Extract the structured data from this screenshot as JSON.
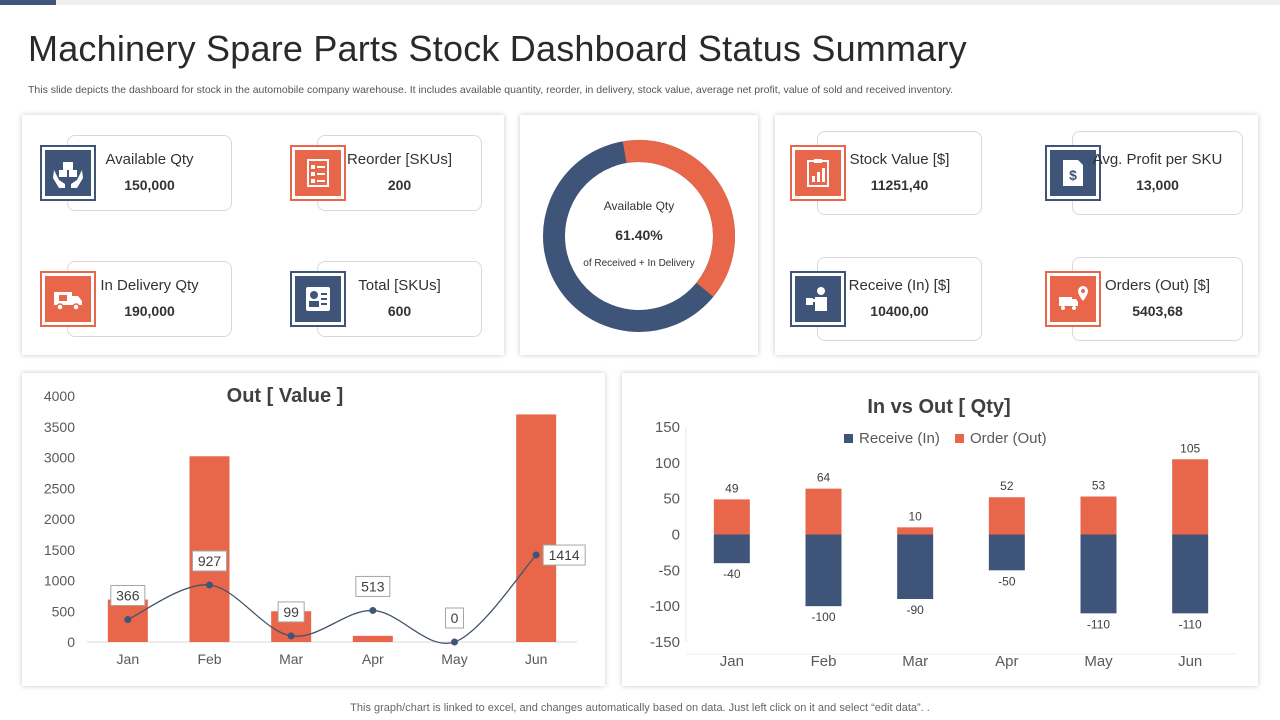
{
  "title": "Machinery Spare Parts Stock Dashboard Status Summary",
  "subtitle": "This slide depicts the dashboard for stock in the automobile company warehouse. It includes available quantity, reorder, in delivery,  stock value, average net profit, value of sold and received inventory.",
  "footer": "This graph/chart is linked to excel,  and changes automatically based on data. Just left click on it and select “edit data”. .",
  "colors": {
    "blue": "#3f5479",
    "orange": "#e8664a"
  },
  "kpis_left": [
    {
      "label": "Available  Qty",
      "value": "150,000",
      "icon": "hands-boxes-icon"
    },
    {
      "label": "Reorder [SKUs]",
      "value": "200",
      "icon": "checklist-icon"
    },
    {
      "label": "In Delivery Qty",
      "value": "190,000",
      "icon": "delivery-truck-icon"
    },
    {
      "label": "Total [SKUs]",
      "value": "600",
      "icon": "id-card-icon"
    }
  ],
  "donut": {
    "title": "Available Qty",
    "percent": "61.40%",
    "caption": "of Received + In Delivery",
    "fraction": 0.614
  },
  "kpis_right": [
    {
      "label": "Stock Value [$]",
      "value": "11251,40",
      "icon": "clipboard-chart-icon"
    },
    {
      "label": "Avg. Profit per SKU",
      "value": "13,000",
      "icon": "dollar-document-icon"
    },
    {
      "label": "Receive (In) [$]",
      "value": "10400,00",
      "icon": "receiving-person-icon"
    },
    {
      "label": "Orders (Out) [$]",
      "value": "5403,68",
      "icon": "truck-location-icon"
    }
  ],
  "chart_data": [
    {
      "type": "bar",
      "title": "Out [ Value ]",
      "categories": [
        "Jan",
        "Feb",
        "Mar",
        "Apr",
        "May",
        "Jun"
      ],
      "values": [
        690,
        3020,
        500,
        100,
        0,
        3700
      ],
      "line_values": [
        366,
        927,
        99,
        513,
        0,
        1414
      ],
      "yticks": [
        0,
        500,
        1000,
        1500,
        2000,
        2500,
        3000,
        3500,
        4000
      ],
      "ylim": [
        0,
        4000
      ],
      "grid": false
    },
    {
      "type": "bar",
      "title": "In vs Out [ Qty]",
      "categories": [
        "Jan",
        "Feb",
        "Mar",
        "Apr",
        "May",
        "Jun"
      ],
      "series": [
        {
          "name": "Receive (In)",
          "values": [
            -40,
            -100,
            -90,
            -50,
            -110,
            -110
          ]
        },
        {
          "name": "Order (Out)",
          "values": [
            49,
            64,
            10,
            52,
            53,
            105
          ]
        }
      ],
      "yticks": [
        -150,
        -100,
        -50,
        0,
        50,
        100,
        150
      ],
      "ylim": [
        -150,
        150
      ],
      "legend": "top",
      "grid": false
    }
  ]
}
